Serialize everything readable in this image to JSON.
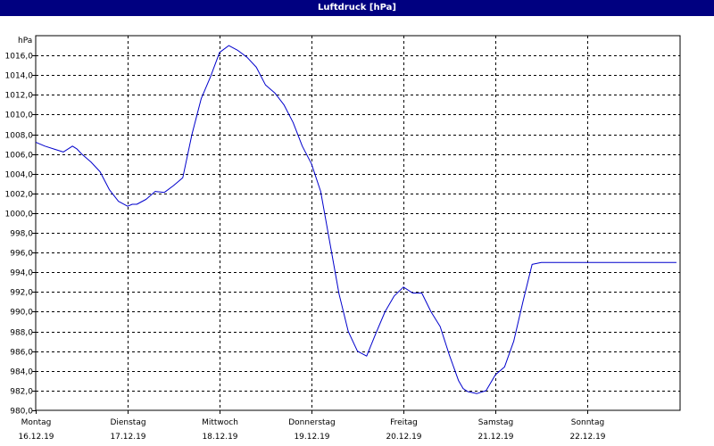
{
  "window": {
    "title": "Luftdruck [hPa]"
  },
  "chart_data": {
    "type": "line",
    "title": "Luftdruck [hPa]",
    "ylabel": "hPa",
    "ylim": [
      980,
      1018
    ],
    "xlim": [
      0,
      7
    ],
    "grid": true,
    "y_ticks": [
      "980,0",
      "982,0",
      "984,0",
      "986,0",
      "988,0",
      "990,0",
      "992,0",
      "994,0",
      "996,0",
      "998,0",
      "1000,0",
      "1002,0",
      "1004,0",
      "1006,0",
      "1008,0",
      "1010,0",
      "1012,0",
      "1014,0",
      "1016,0"
    ],
    "x_days": [
      {
        "day": "Montag",
        "date": "16.12.19"
      },
      {
        "day": "Dienstag",
        "date": "17.12.19"
      },
      {
        "day": "Mittwoch",
        "date": "18.12.19"
      },
      {
        "day": "Donnerstag",
        "date": "19.12.19"
      },
      {
        "day": "Freitag",
        "date": "20.12.19"
      },
      {
        "day": "Samstag",
        "date": "21.12.19"
      },
      {
        "day": "Sonntag",
        "date": "22.12.19"
      }
    ],
    "series": [
      {
        "color": "#0000cc",
        "x": [
          0,
          0.1,
          0.2,
          0.3,
          0.4,
          0.45,
          0.5,
          0.6,
          0.7,
          0.8,
          0.9,
          1.0,
          1.05,
          1.1,
          1.2,
          1.3,
          1.4,
          1.5,
          1.6,
          1.7,
          1.8,
          1.9,
          2.0,
          2.1,
          2.2,
          2.3,
          2.4,
          2.5,
          2.6,
          2.7,
          2.8,
          2.9,
          3.0,
          3.1,
          3.2,
          3.3,
          3.4,
          3.5,
          3.6,
          3.7,
          3.8,
          3.9,
          4.0,
          4.1,
          4.2,
          4.3,
          4.4,
          4.5,
          4.6,
          4.65,
          4.7,
          4.8,
          4.9,
          5.0,
          5.1,
          5.2,
          5.3,
          5.4,
          5.5,
          5.6,
          5.7,
          5.8,
          5.9,
          6.0,
          6.1,
          6.15,
          6.2,
          6.3,
          6.4,
          6.5,
          6.6,
          6.7,
          6.8,
          6.9,
          6.97
        ],
        "y": [
          1007.2,
          1006.8,
          1006.5,
          1006.2,
          1006.8,
          1006.5,
          1006.0,
          1005.2,
          1004.2,
          1002.4,
          1001.2,
          1000.7,
          1000.9,
          1000.9,
          1001.4,
          1002.2,
          1002.1,
          1002.8,
          1003.6,
          1008.0,
          1011.6,
          1013.8,
          1016.3,
          1017.0,
          1016.5,
          1015.8,
          1014.8,
          1013.0,
          1012.2,
          1011.0,
          1009.2,
          1006.8,
          1005.0,
          1002.2,
          997.0,
          991.8,
          988.0,
          986.0,
          985.5,
          987.8,
          990.0,
          991.6,
          992.5,
          991.9,
          991.9,
          990.0,
          988.5,
          985.6,
          983.0,
          982.2,
          981.9,
          981.7,
          982.0,
          983.6,
          984.4,
          987.0,
          991.0,
          994.8,
          995.0,
          995.0,
          995.0,
          995.0,
          995.0,
          995.0,
          995.0,
          995.0,
          995.0,
          995.0,
          995.0,
          995.0,
          995.0,
          995.0,
          995.0,
          995.0,
          995.0
        ]
      }
    ]
  }
}
